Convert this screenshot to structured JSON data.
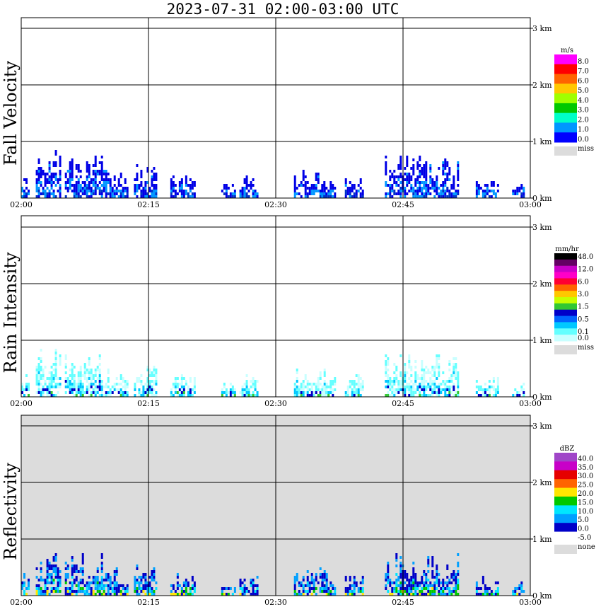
{
  "title": "2023-07-31   02:00-03:00 UTC",
  "time_ticks": [
    "02:00",
    "02:15",
    "02:30",
    "02:45",
    "03:00"
  ],
  "height_ticks": [
    "0 km",
    "1 km",
    "2 km",
    "3 km"
  ],
  "chart_data": [
    {
      "type": "heatmap",
      "title": "Fall Velocity",
      "ylabel": "Fall Velocity",
      "x_range": [
        "02:00",
        "03:00"
      ],
      "y_range_km": [
        0,
        3.1
      ],
      "legend_unit": "m/s",
      "legend": [
        {
          "label": "8.0",
          "color": "#ff00ff"
        },
        {
          "label": "7.0",
          "color": "#ff0000"
        },
        {
          "label": "6.0",
          "color": "#ff6400"
        },
        {
          "label": "5.0",
          "color": "#ffc800"
        },
        {
          "label": "4.0",
          "color": "#a0ff00"
        },
        {
          "label": "3.0",
          "color": "#00c800"
        },
        {
          "label": "2.0",
          "color": "#00ffc8"
        },
        {
          "label": "1.0",
          "color": "#0096ff"
        },
        {
          "label": "0.0",
          "color": "#0000ff"
        }
      ],
      "missing": {
        "label": "miss",
        "color": "#dcdcdc"
      },
      "background": "#ffffff",
      "echo_colors": [
        "#0000e6",
        "#0096ff",
        "#0032c8"
      ]
    },
    {
      "type": "heatmap",
      "title": "Rain Intensity",
      "ylabel": "Rain Intensity",
      "x_range": [
        "02:00",
        "03:00"
      ],
      "y_range_km": [
        0,
        3.1
      ],
      "legend_unit": "mm/hr",
      "legend": [
        {
          "label": "48.0",
          "color": "#000000"
        },
        {
          "label": "",
          "color": "#640064"
        },
        {
          "label": "12.0",
          "color": "#c800c8"
        },
        {
          "label": "",
          "color": "#ff00c8"
        },
        {
          "label": "6.0",
          "color": "#ff0032"
        },
        {
          "label": "",
          "color": "#ff6400"
        },
        {
          "label": "3.0",
          "color": "#ffc800"
        },
        {
          "label": "",
          "color": "#c8ff00"
        },
        {
          "label": "1.5",
          "color": "#32c832"
        },
        {
          "label": "",
          "color": "#0000c8"
        },
        {
          "label": "0.5",
          "color": "#0064ff"
        },
        {
          "label": "",
          "color": "#00c8ff"
        },
        {
          "label": "0.1",
          "color": "#64ffff"
        },
        {
          "label": "0.0",
          "color": "#c8ffff"
        }
      ],
      "missing": {
        "label": "miss",
        "color": "#dcdcdc"
      },
      "background": "#ffffff",
      "echo_colors": [
        "#c8ffff",
        "#64ffff",
        "#00c8ff",
        "#0000c8",
        "#32c832"
      ]
    },
    {
      "type": "heatmap",
      "title": "Reflectivity",
      "ylabel": "Reflectivity",
      "x_range": [
        "02:00",
        "03:00"
      ],
      "y_range_km": [
        0,
        3.1
      ],
      "legend_unit": "dBZ",
      "legend": [
        {
          "label": "40.0",
          "color": "#a046c8"
        },
        {
          "label": "35.0",
          "color": "#c800c8"
        },
        {
          "label": "30.0",
          "color": "#e60000"
        },
        {
          "label": "25.0",
          "color": "#ff6400"
        },
        {
          "label": "20.0",
          "color": "#ffe600"
        },
        {
          "label": "15.0",
          "color": "#00c800"
        },
        {
          "label": "10.0",
          "color": "#00e6ff"
        },
        {
          "label": "5.0",
          "color": "#00a0ff"
        },
        {
          "label": "0.0",
          "color": "#0000c8"
        },
        {
          "label": "-5.0",
          "color": "#ffffff"
        }
      ],
      "missing": {
        "label": "none",
        "color": "#dcdcdc"
      },
      "background": "#dcdcdc",
      "echo_colors": [
        "#0000c8",
        "#00a0ff",
        "#00e6ff",
        "#00c800",
        "#ffe600"
      ]
    }
  ]
}
